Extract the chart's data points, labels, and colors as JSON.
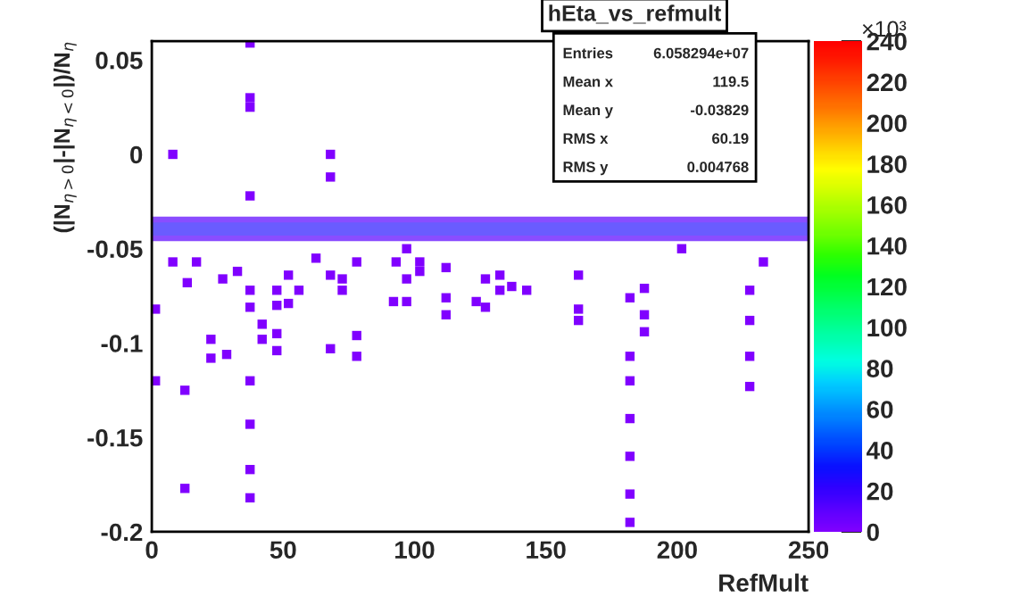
{
  "chart_data": {
    "type": "scatter",
    "title": "hEta_vs_refmult",
    "xlabel": "RefMult",
    "ylabel": "(|N$_{η>0}$|-|N$_{η<0}$|)/N$_{η}$",
    "clabel": "×10³",
    "annotations": [
      "Entries",
      "6.058294e+07",
      "Mean x",
      "119.5",
      "Mean y",
      "-0.03829",
      "RMS x",
      "60.19",
      "RMS y",
      "0.004768"
    ],
    "x": [
      37.4,
      37.4,
      37.4,
      37.4,
      37.4,
      37.4,
      37.4,
      37.4,
      68,
      68,
      8,
      12.6,
      12.6,
      8,
      17,
      13.5,
      27,
      32.6,
      37.4,
      37.4,
      47.6,
      47.6,
      52,
      52,
      62.5,
      56,
      68,
      72.5,
      72.5,
      78,
      78,
      78,
      93,
      97,
      97,
      97,
      92,
      102,
      102,
      112,
      112,
      112,
      123.5,
      127,
      127,
      132.5,
      132.5,
      137,
      142.7,
      1.4,
      1.4,
      22.5,
      22.5,
      28.5,
      42,
      42,
      47.6,
      47.6,
      68,
      232.8,
      162.4,
      162.4,
      162.4,
      182,
      187.5,
      187.5,
      187.5,
      182,
      182,
      182,
      182,
      182,
      182,
      227.6,
      227.6,
      227.6,
      227.6,
      201.7
    ],
    "series": [
      {
        "color": "#8000ff",
        "values": [
          0.059,
          0.03,
          0.025,
          -0.022,
          -0.12,
          -0.143,
          -0.167,
          -0.182,
          -0.012,
          0.0,
          0.0,
          -0.177,
          -0.125,
          -0.057,
          -0.057,
          -0.068,
          -0.066,
          -0.062,
          -0.072,
          -0.081,
          -0.072,
          -0.08,
          -0.079,
          -0.064,
          -0.055,
          -0.072,
          -0.064,
          -0.066,
          -0.072,
          -0.057,
          -0.096,
          -0.107,
          -0.057,
          -0.05,
          -0.066,
          -0.078,
          -0.078,
          -0.057,
          -0.062,
          -0.076,
          -0.085,
          -0.06,
          -0.078,
          -0.066,
          -0.081,
          -0.064,
          -0.072,
          -0.07,
          -0.072,
          -0.12,
          -0.082,
          -0.098,
          -0.108,
          -0.106,
          -0.098,
          -0.09,
          -0.095,
          -0.104,
          -0.103,
          -0.057,
          -0.064,
          -0.082,
          -0.088,
          -0.076,
          -0.071,
          -0.085,
          -0.094,
          -0.107,
          -0.12,
          -0.14,
          -0.16,
          -0.18,
          -0.195,
          -0.072,
          -0.088,
          -0.107,
          -0.123,
          -0.05
        ]
      }
    ],
    "marker": "square",
    "bands": [
      {
        "axis": "y",
        "from": -0.046,
        "to": -0.033,
        "color": "#8a4dff"
      },
      {
        "axis": "y",
        "from": -0.043,
        "to": -0.036,
        "color": "#6a5cff"
      }
    ],
    "xlim": [
      0,
      250
    ],
    "xticks": [
      0,
      50,
      100,
      150,
      200,
      250
    ],
    "ylim": [
      -0.2,
      0.06
    ],
    "yticks": [
      -0.2,
      -0.15,
      -0.1,
      -0.05,
      0,
      0.05
    ],
    "clim": [
      0,
      240
    ],
    "cticks": [
      0,
      20,
      40,
      60,
      80,
      100,
      120,
      140,
      160,
      180,
      200,
      220,
      240
    ],
    "grid": false,
    "legend": false
  }
}
